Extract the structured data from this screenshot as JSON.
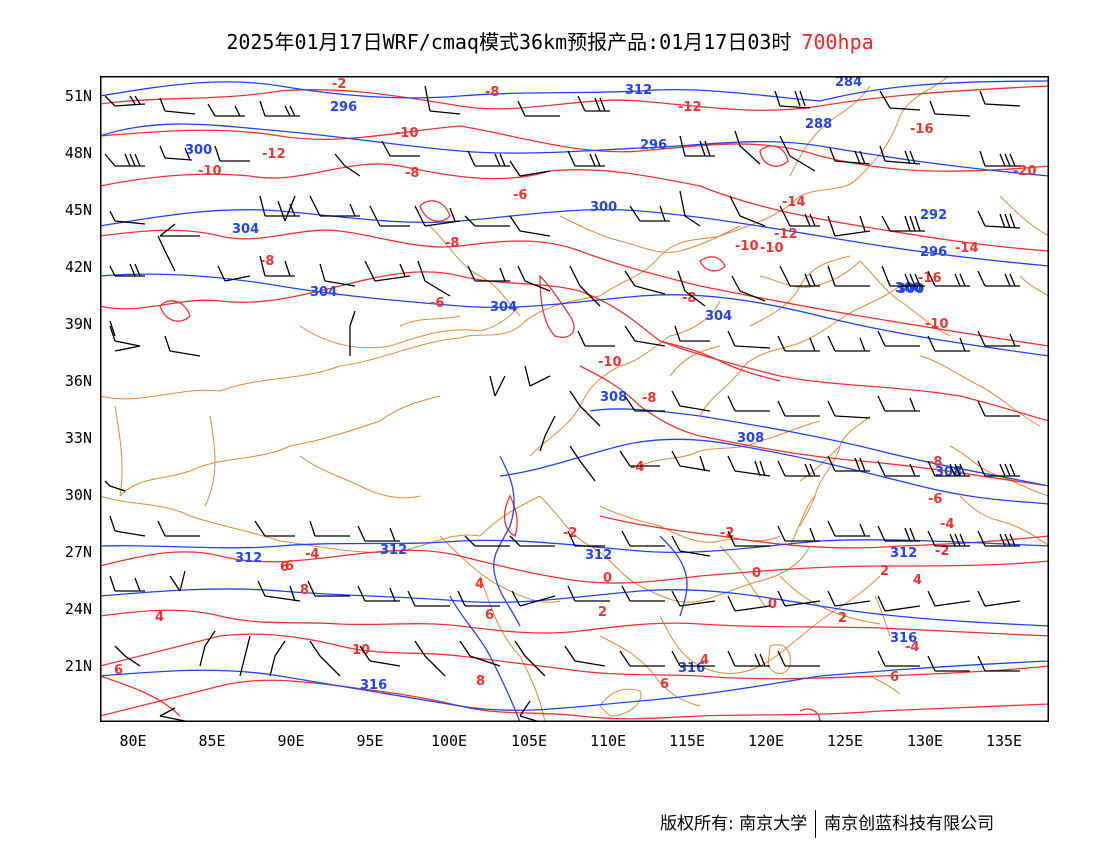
{
  "title": {
    "main": "2025年01月17日WRF/cmaq模式36km预报产品:01月17日03时",
    "level": "700hpa"
  },
  "colors": {
    "temperature": "#ee3333",
    "height": "#2244ee",
    "border": "#e08a3c",
    "barb": "#000000",
    "frame": "#000000"
  },
  "axes": {
    "lat_labels": [
      "51N",
      "48N",
      "45N",
      "42N",
      "39N",
      "36N",
      "33N",
      "30N",
      "27N",
      "24N",
      "21N"
    ],
    "lon_labels": [
      "80E",
      "85E",
      "90E",
      "95E",
      "100E",
      "105E",
      "110E",
      "115E",
      "120E",
      "125E",
      "130E",
      "135E"
    ]
  },
  "contours": {
    "height_labels": [
      "296",
      "288",
      "284",
      "312",
      "300",
      "304",
      "300",
      "296",
      "292",
      "296",
      "304",
      "304",
      "300",
      "308",
      "308",
      "308",
      "312",
      "312",
      "312",
      "316",
      "316",
      "316",
      "304",
      "300",
      "312"
    ],
    "temperature_labels": [
      "-2",
      "-8",
      "-12",
      "-10",
      "-12",
      "-10",
      "-8",
      "-16",
      "-6",
      "-20",
      "-10",
      "-14",
      "-12",
      "-10",
      "-8",
      "-8",
      "-6",
      "-14",
      "-16",
      "-10",
      "-10",
      "-8",
      "-8",
      "-8",
      "-6",
      "-4",
      "-4",
      "-2",
      "-2",
      "-2",
      "-4",
      "6",
      "4",
      "8",
      "4",
      "0",
      "0",
      "4",
      "6",
      "2",
      "2",
      "0",
      "-4",
      "2",
      "4",
      "10",
      "6",
      "8",
      "6",
      "6",
      "6"
    ]
  },
  "footer": {
    "copyright_label": "版权所有:",
    "org1": "南京大学",
    "org2": "南京创蓝科技有限公司"
  }
}
